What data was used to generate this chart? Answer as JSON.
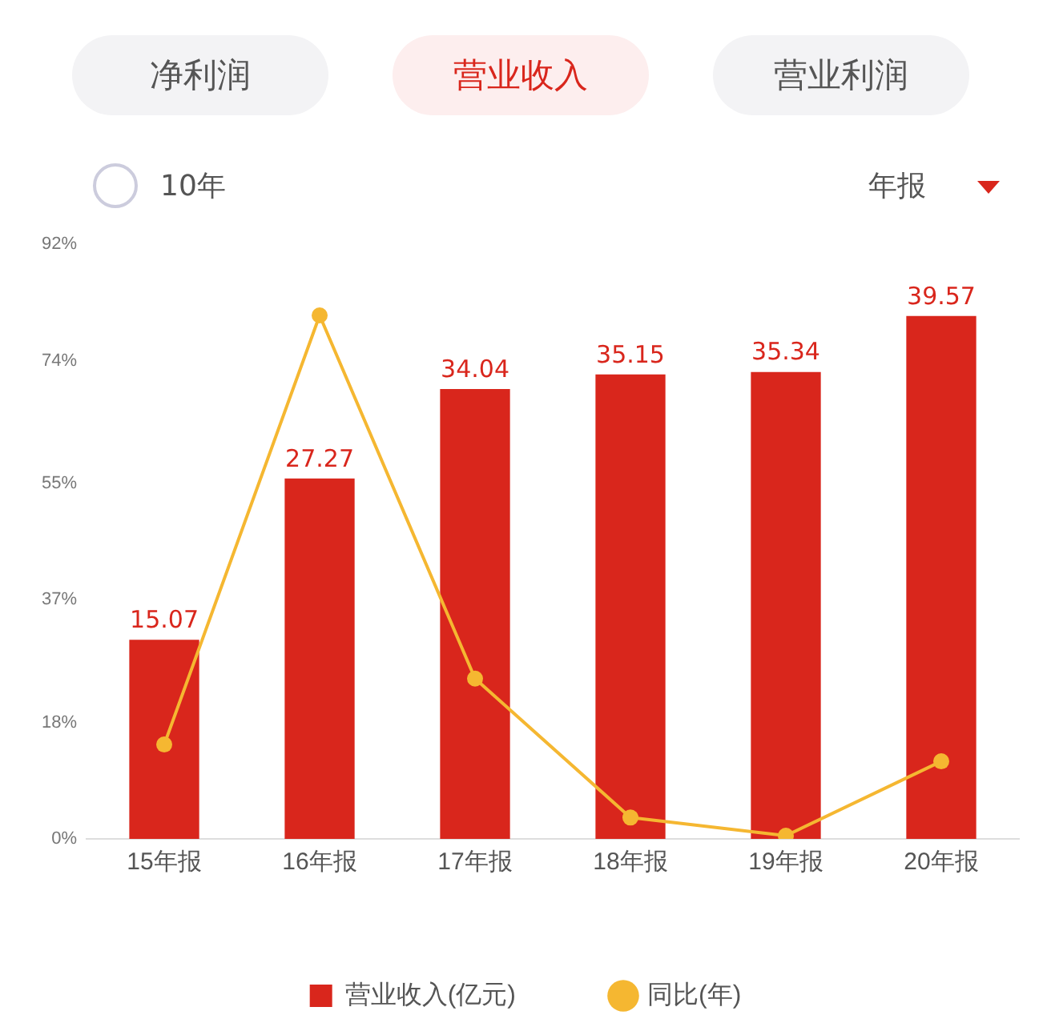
{
  "chart_data": {
    "type": "bar",
    "annotations": [
      "净利润",
      "营业收入",
      "营业利润",
      "10年",
      "年报"
    ],
    "categories": [
      "15年报",
      "16年报",
      "17年报",
      "18年报",
      "19年报",
      "20年报"
    ],
    "series": [
      {
        "name": "营业收入(亿元)",
        "axis": "y2",
        "color": "#d9261c",
        "values": [
          15.07,
          27.27,
          34.04,
          35.15,
          35.34,
          39.57
        ],
        "value_labels": [
          "15.07",
          "27.27",
          "34.04",
          "35.15",
          "35.34",
          "39.57"
        ]
      },
      {
        "name": "同比(年)",
        "type": "line",
        "axis": "y",
        "color": "#f5b731",
        "values": [
          14.6,
          81,
          24.8,
          3.3,
          0.5,
          12
        ]
      }
    ],
    "ylim": [
      0,
      92
    ],
    "yticks": [
      {
        "value": 0,
        "label": "0%"
      },
      {
        "value": 18,
        "label": "18%"
      },
      {
        "value": 37,
        "label": "37%"
      },
      {
        "value": 55,
        "label": "55%"
      },
      {
        "value": 74,
        "label": "74%"
      },
      {
        "value": 92,
        "label": "92%"
      }
    ],
    "grid": false,
    "legend": "bottom",
    "marker": "circle",
    "line_style": "solid"
  }
}
